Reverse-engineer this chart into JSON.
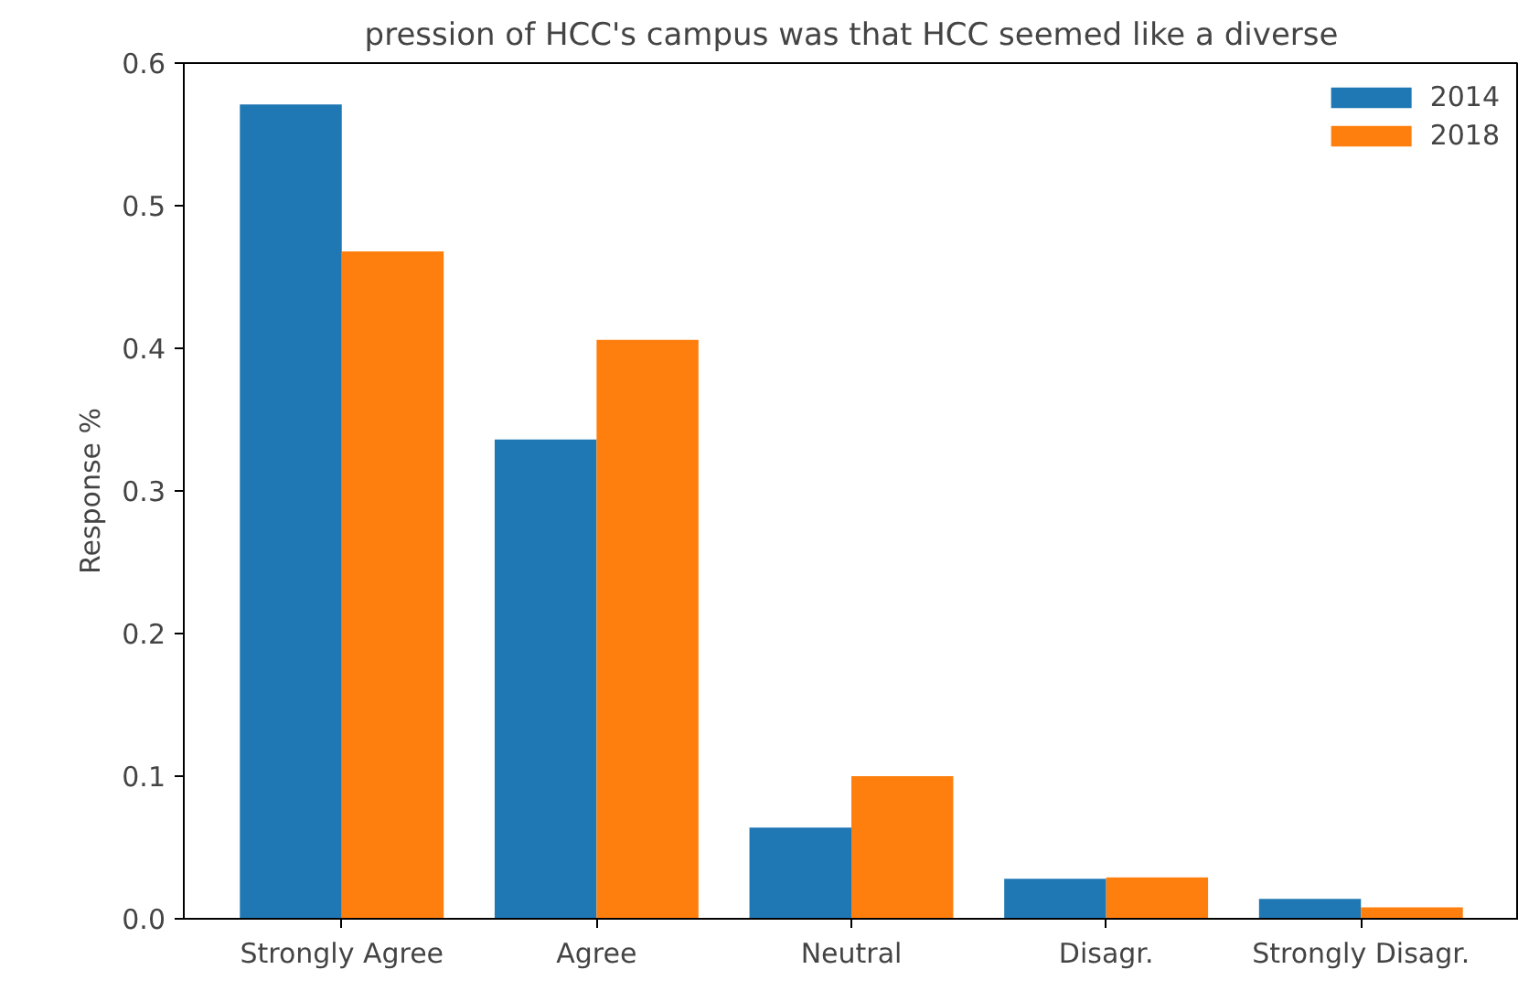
{
  "chart_data": {
    "type": "bar",
    "title": "pression of HCC's campus was that HCC seemed like a diverse",
    "ylabel": "Response %",
    "categories": [
      "Strongly Agree",
      "Agree",
      "Neutral",
      "Disagr.",
      "Strongly Disagr."
    ],
    "series": [
      {
        "name": "2014",
        "color": "#1f77b4",
        "values": [
          0.571,
          0.336,
          0.064,
          0.028,
          0.014
        ]
      },
      {
        "name": "2018",
        "color": "#ff7f0e",
        "values": [
          0.468,
          0.406,
          0.1,
          0.029,
          0.008
        ]
      }
    ],
    "ylim": [
      0,
      0.6
    ],
    "yticks": [
      {
        "value": 0,
        "label": "0.0"
      },
      0.1,
      0.2,
      0.3,
      0.4,
      0.5,
      0.6
    ],
    "grid": false,
    "legend": "top right"
  }
}
